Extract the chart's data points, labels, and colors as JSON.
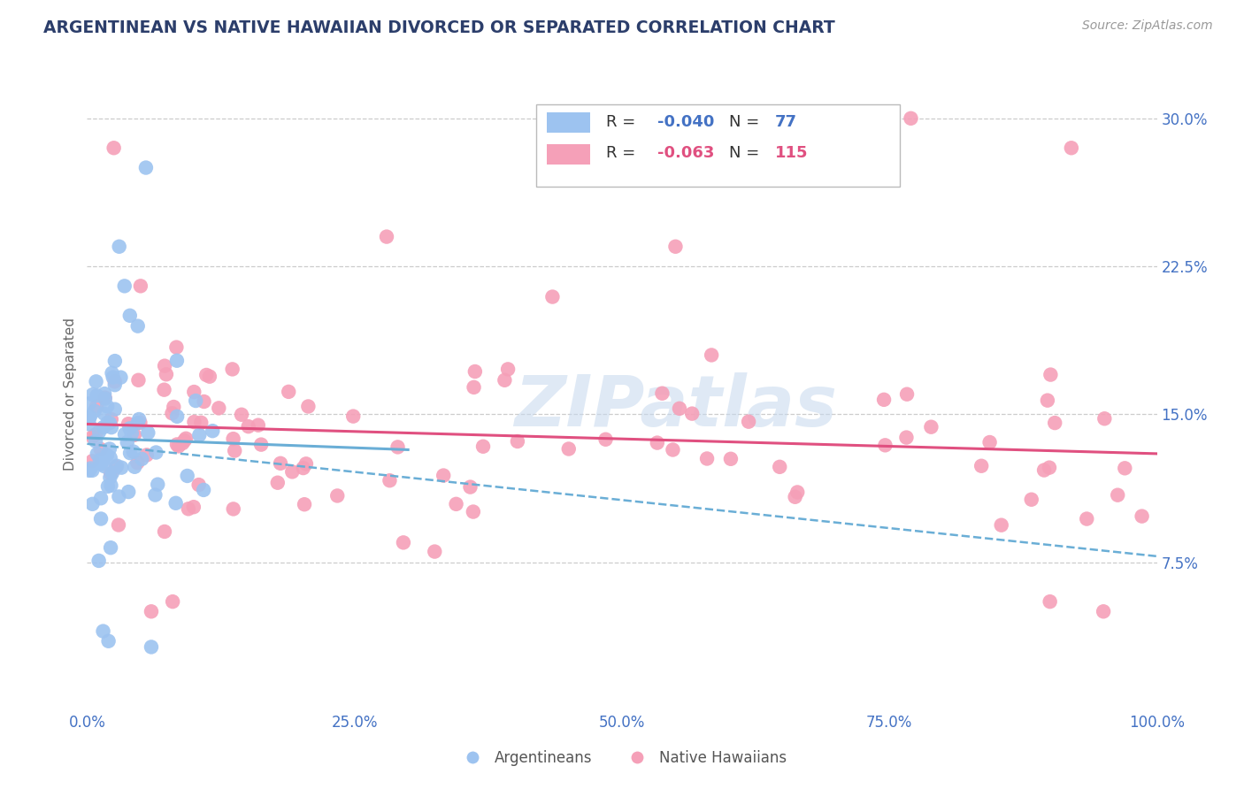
{
  "title": "ARGENTINEAN VS NATIVE HAWAIIAN DIVORCED OR SEPARATED CORRELATION CHART",
  "source": "Source: ZipAtlas.com",
  "ylabel": "Divorced or Separated",
  "xlim": [
    0,
    100
  ],
  "ylim": [
    0,
    32
  ],
  "legend_blue_R_val": "-0.040",
  "legend_blue_N_val": "77",
  "legend_pink_R_val": "-0.063",
  "legend_pink_N_val": "115",
  "blue_line_y_start": 13.8,
  "blue_line_y_end": 13.2,
  "blue_dashed_y_start": 13.5,
  "blue_dashed_y_end": 7.8,
  "pink_line_y_start": 14.5,
  "pink_line_y_end": 13.0,
  "watermark": "ZIPatlas",
  "color_blue_scatter": "#9DC3F0",
  "color_pink_scatter": "#F5A0B8",
  "color_blue_line": "#6aaed6",
  "color_pink_line": "#e05080",
  "color_legend_text_blue": "#4472C4",
  "color_legend_text_pink": "#E05080",
  "color_title": "#2C3E6B",
  "background_color": "#FFFFFF",
  "grid_color": "#CCCCCC",
  "ytick_label_color": "#4472C4",
  "xtick_label_color": "#4472C4"
}
